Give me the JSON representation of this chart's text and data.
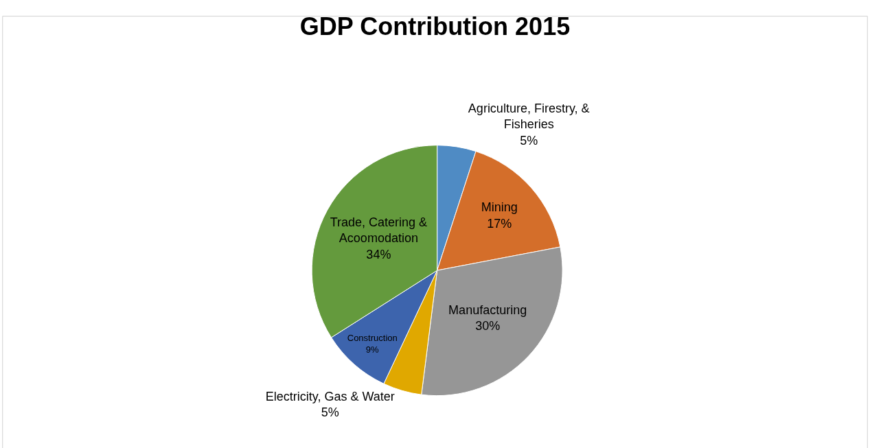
{
  "chart_data": {
    "type": "pie",
    "title": "GDP Contribution 2015",
    "categories": [
      "Agriculture, Firestry, & Fisheries",
      "Mining",
      "Manufacturing",
      "Electricity, Gas & Water",
      "Construction",
      "Trade, Catering & Acoomodation"
    ],
    "values": [
      5,
      17,
      30,
      5,
      9,
      34
    ],
    "value_labels": [
      "5%",
      "17%",
      "30%",
      "5%",
      "9%",
      "34%"
    ],
    "colors": [
      "#4f8bc4",
      "#d46e2a",
      "#969696",
      "#e0a800",
      "#3d64ad",
      "#649a3d"
    ]
  }
}
